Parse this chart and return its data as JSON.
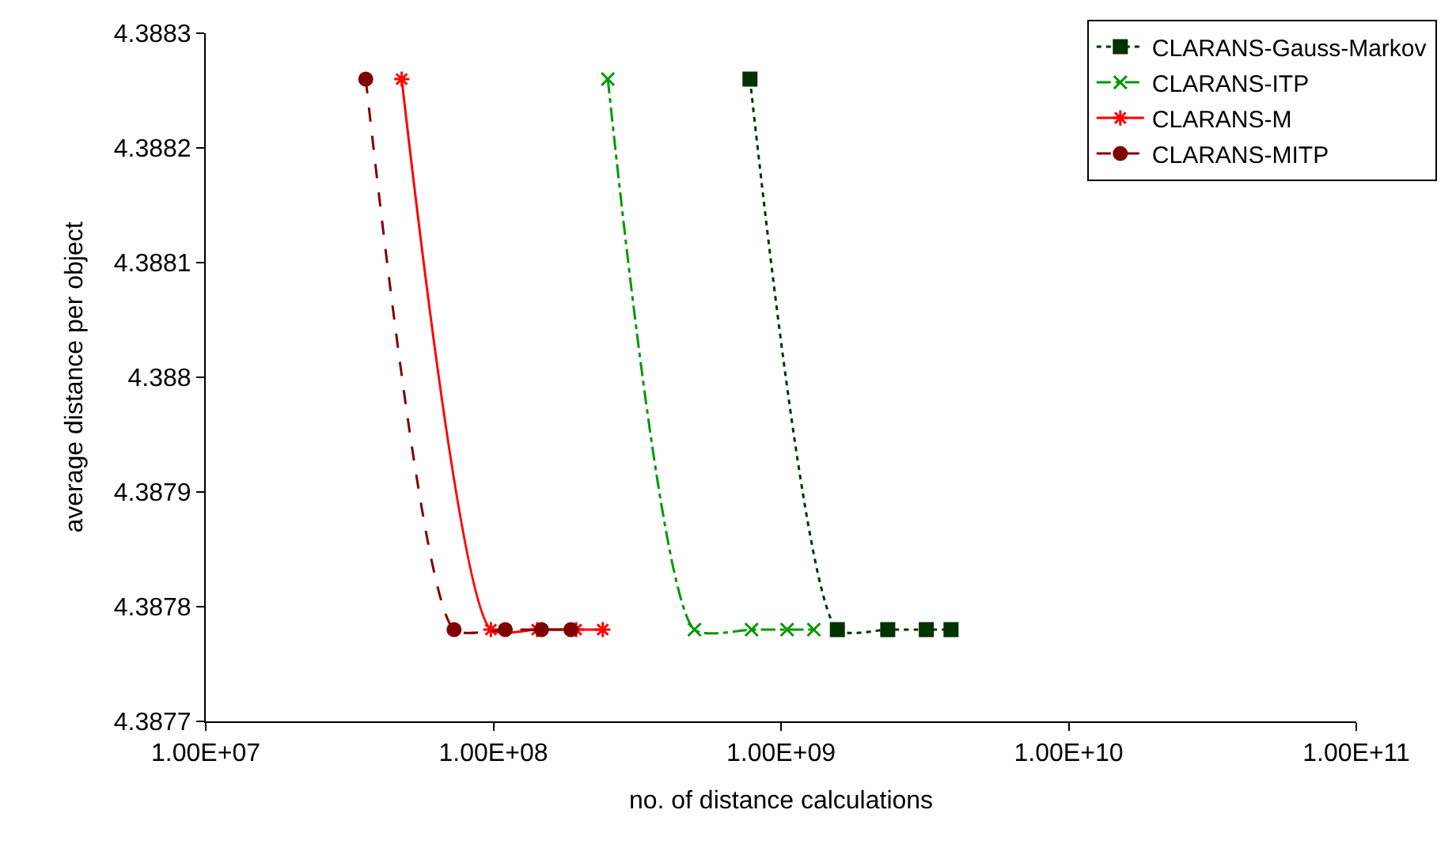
{
  "chart_data": {
    "type": "line",
    "xlabel": "no. of distance calculations",
    "ylabel": "average distance per object",
    "log": "x",
    "xlim": [
      10000000,
      100000000000
    ],
    "xticks": [
      {
        "value": 10000000,
        "label": "1.00E+07"
      },
      {
        "value": 100000000,
        "label": "1.00E+08"
      },
      {
        "value": 1000000000,
        "label": "1.00E+09"
      },
      {
        "value": 10000000000,
        "label": "1.00E+10"
      },
      {
        "value": 100000000000,
        "label": "1.00E+11"
      }
    ],
    "ylim": [
      4.3877,
      4.3883
    ],
    "yticks": [
      4.3877,
      4.3878,
      4.3879,
      4.388,
      4.3881,
      4.3882,
      4.3883
    ],
    "grid": false,
    "legend": "top right",
    "series": [
      {
        "name": "CLARANS-Gauss-Markov",
        "color": "#003300",
        "marker": "square",
        "line_style": "dotted",
        "x": [
          780000000,
          1570000000,
          2350000000,
          3200000000,
          3900000000
        ],
        "values": [
          4.38826,
          4.38778,
          4.38778,
          4.38778,
          4.38778
        ]
      },
      {
        "name": "CLARANS-ITP",
        "color": "#009900",
        "marker": "cross",
        "line_style": "dashdot",
        "x": [
          250000000,
          500000000,
          790000000,
          1050000000,
          1300000000
        ],
        "values": [
          4.38826,
          4.38778,
          4.38778,
          4.38778,
          4.38778
        ]
      },
      {
        "name": "CLARANS-M",
        "color": "#ff0000",
        "marker": "cross",
        "line_style": "solid",
        "x": [
          48000000,
          98000000,
          142000000,
          194000000,
          240000000
        ],
        "values": [
          4.38826,
          4.38778,
          4.38778,
          4.38778,
          4.38778
        ]
      },
      {
        "name": "CLARANS-MITP",
        "color": "#800000",
        "marker": "circle",
        "line_style": "dashed",
        "x": [
          36000000,
          73000000,
          110000000,
          147000000,
          186000000
        ],
        "values": [
          4.38826,
          4.38778,
          4.38778,
          4.38778,
          4.38778
        ]
      }
    ]
  }
}
